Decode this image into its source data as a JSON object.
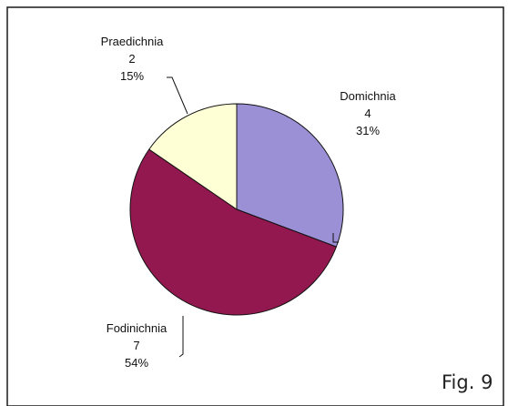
{
  "figure_label": "Fig. 9",
  "chart_data": {
    "type": "pie",
    "title": "",
    "start_angle_deg": 0,
    "direction": "clockwise",
    "slices": [
      {
        "name": "Domichnia",
        "value": 4,
        "percent": "31%",
        "color": "#9b8fd6"
      },
      {
        "name": "Fodinichnia",
        "value": 7,
        "percent": "54%",
        "color": "#93184f"
      },
      {
        "name": "Praedichnia",
        "value": 2,
        "percent": "15%",
        "color": "#ffffd6"
      }
    ]
  }
}
